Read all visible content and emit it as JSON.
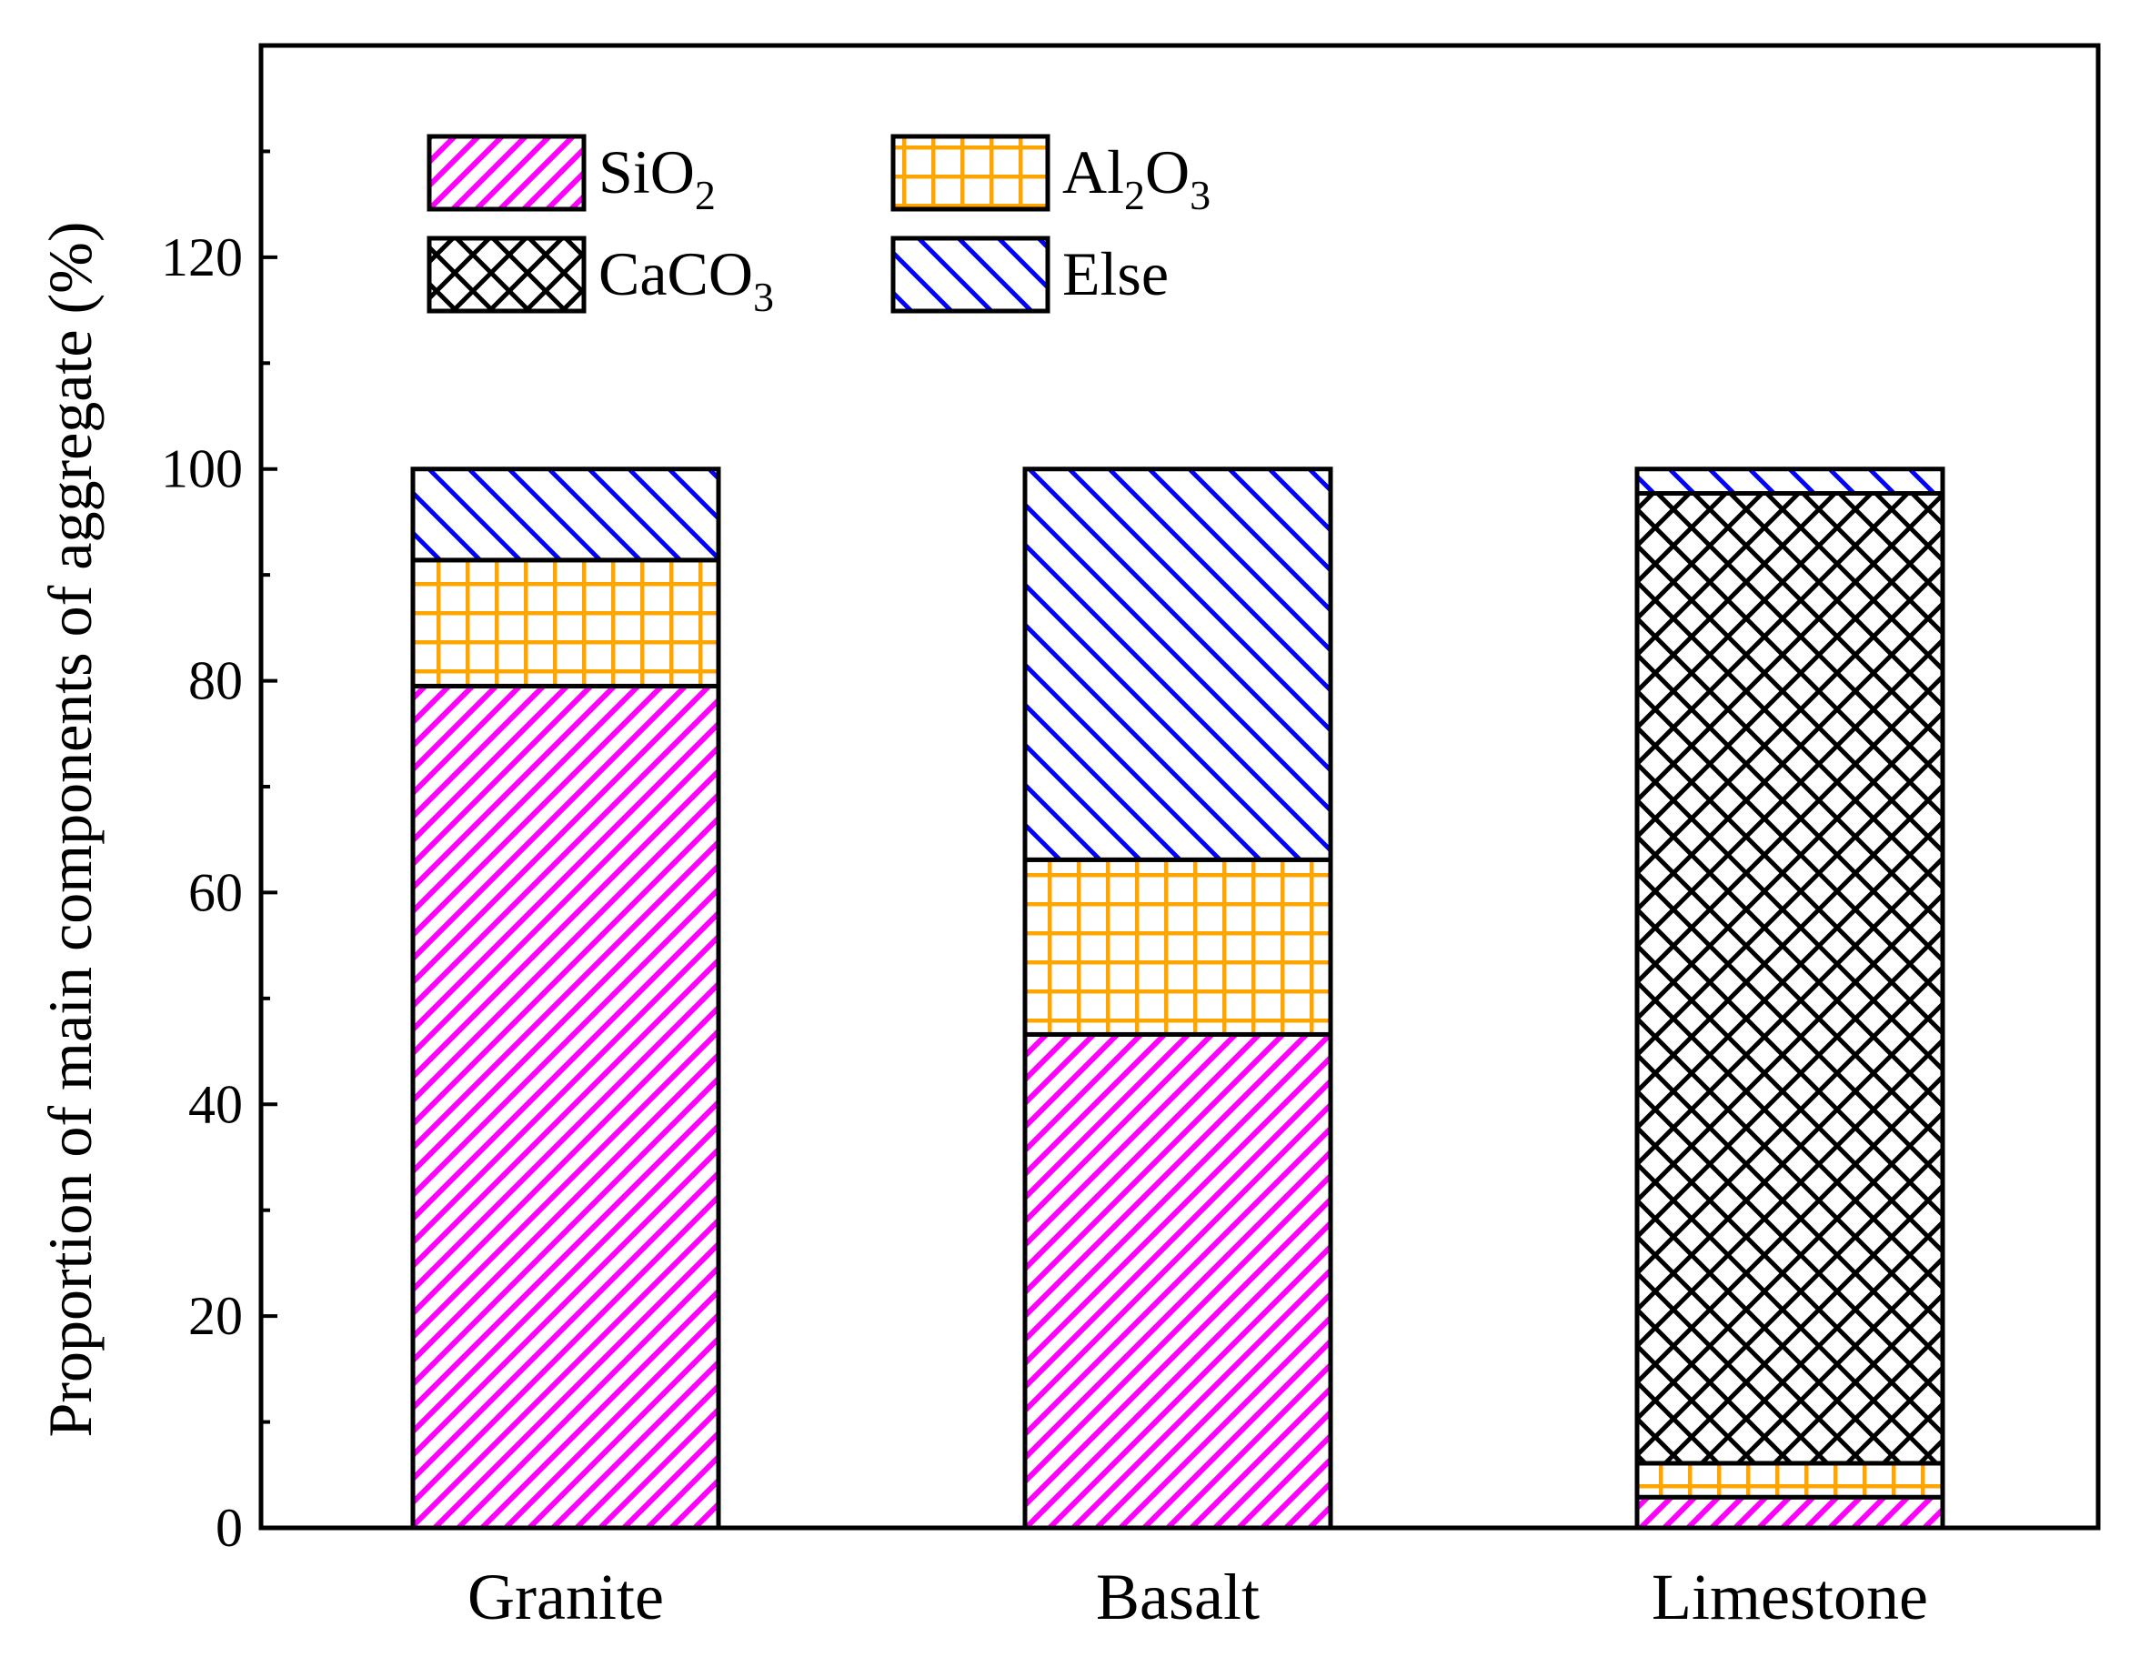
{
  "chart_data": {
    "type": "bar",
    "stacked": true,
    "categories": [
      "Granite",
      "Basalt",
      "Limestone"
    ],
    "series": [
      {
        "name": "SiO",
        "subscript": "2",
        "values": [
          79.5,
          46.6,
          2.9
        ],
        "color": "#ff00ff",
        "pattern": "diagonal-up"
      },
      {
        "name": "Al",
        "name_mid": "O",
        "subscript": "2",
        "subscript2": "3",
        "values": [
          11.9,
          16.5,
          3.2
        ],
        "color": "#ffa500",
        "pattern": "grid"
      },
      {
        "name": "CaCO",
        "subscript": "3",
        "values": [
          0,
          0,
          91.6
        ],
        "color": "#000000",
        "pattern": "crosshatch"
      },
      {
        "name": "Else",
        "values": [
          8.6,
          36.9,
          2.3
        ],
        "color": "#0000ff",
        "pattern": "diagonal-down"
      }
    ],
    "title": "",
    "xlabel": "",
    "ylabel": "Proportion of main components of aggregate (%)",
    "ylim": [
      0,
      140
    ],
    "yticks": [
      0,
      20,
      40,
      60,
      80,
      100,
      120
    ],
    "grid": false,
    "legend_position": "top-left"
  }
}
